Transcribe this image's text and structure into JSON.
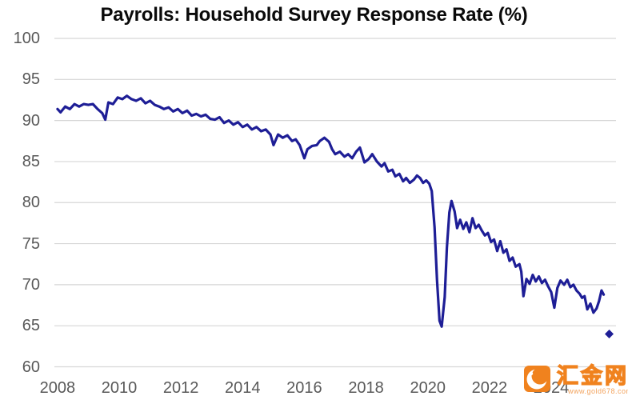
{
  "title": "Payrolls: Household Survey Response Rate (%)",
  "watermark": {
    "brand": "汇金网",
    "url": "www.gold678.com",
    "logo_color": "#f0821e"
  },
  "colors": {
    "line": "#1e1e96",
    "marker": "#1e1e96",
    "grid": "#d6d6d6",
    "axis_text": "#595959",
    "title_text": "#0a0a0a",
    "background": "#ffffff"
  },
  "chart_data": {
    "type": "line",
    "title": "Payrolls: Household Survey Response Rate (%)",
    "xlabel": "",
    "ylabel": "",
    "xlim": [
      2007.9,
      2026.1
    ],
    "ylim": [
      60,
      100
    ],
    "x_ticks": [
      2008,
      2010,
      2012,
      2014,
      2016,
      2018,
      2020,
      2022,
      2024
    ],
    "y_ticks": [
      100,
      95,
      90,
      85,
      80,
      75,
      70,
      65,
      60
    ],
    "grid": "horizontal",
    "legend": "none",
    "series": [
      {
        "name": "Household survey response rate (%)",
        "points": [
          [
            2008.0,
            91.4
          ],
          [
            2008.1,
            91.0
          ],
          [
            2008.25,
            91.7
          ],
          [
            2008.4,
            91.4
          ],
          [
            2008.55,
            92.0
          ],
          [
            2008.7,
            91.7
          ],
          [
            2008.85,
            92.0
          ],
          [
            2009.0,
            91.9
          ],
          [
            2009.15,
            92.0
          ],
          [
            2009.3,
            91.4
          ],
          [
            2009.45,
            90.9
          ],
          [
            2009.55,
            90.1
          ],
          [
            2009.65,
            92.2
          ],
          [
            2009.8,
            92.0
          ],
          [
            2009.95,
            92.8
          ],
          [
            2010.1,
            92.6
          ],
          [
            2010.25,
            93.0
          ],
          [
            2010.4,
            92.6
          ],
          [
            2010.55,
            92.4
          ],
          [
            2010.7,
            92.7
          ],
          [
            2010.85,
            92.1
          ],
          [
            2011.0,
            92.4
          ],
          [
            2011.15,
            91.9
          ],
          [
            2011.3,
            91.7
          ],
          [
            2011.45,
            91.4
          ],
          [
            2011.6,
            91.6
          ],
          [
            2011.75,
            91.1
          ],
          [
            2011.9,
            91.4
          ],
          [
            2012.05,
            90.9
          ],
          [
            2012.2,
            91.2
          ],
          [
            2012.35,
            90.6
          ],
          [
            2012.5,
            90.8
          ],
          [
            2012.65,
            90.5
          ],
          [
            2012.8,
            90.7
          ],
          [
            2012.95,
            90.2
          ],
          [
            2013.1,
            90.1
          ],
          [
            2013.25,
            90.4
          ],
          [
            2013.4,
            89.7
          ],
          [
            2013.55,
            90.0
          ],
          [
            2013.7,
            89.5
          ],
          [
            2013.85,
            89.8
          ],
          [
            2014.0,
            89.2
          ],
          [
            2014.15,
            89.5
          ],
          [
            2014.3,
            88.9
          ],
          [
            2014.45,
            89.2
          ],
          [
            2014.6,
            88.7
          ],
          [
            2014.75,
            88.9
          ],
          [
            2014.9,
            88.3
          ],
          [
            2015.0,
            87.0
          ],
          [
            2015.15,
            88.3
          ],
          [
            2015.3,
            87.9
          ],
          [
            2015.45,
            88.2
          ],
          [
            2015.6,
            87.5
          ],
          [
            2015.72,
            87.7
          ],
          [
            2015.85,
            87.0
          ],
          [
            2016.0,
            85.4
          ],
          [
            2016.1,
            86.5
          ],
          [
            2016.25,
            86.9
          ],
          [
            2016.4,
            87.0
          ],
          [
            2016.5,
            87.5
          ],
          [
            2016.65,
            87.9
          ],
          [
            2016.8,
            87.4
          ],
          [
            2016.9,
            86.5
          ],
          [
            2017.0,
            85.9
          ],
          [
            2017.15,
            86.2
          ],
          [
            2017.3,
            85.6
          ],
          [
            2017.42,
            85.9
          ],
          [
            2017.55,
            85.4
          ],
          [
            2017.68,
            86.2
          ],
          [
            2017.8,
            86.7
          ],
          [
            2017.95,
            84.9
          ],
          [
            2018.08,
            85.3
          ],
          [
            2018.2,
            85.9
          ],
          [
            2018.35,
            85.0
          ],
          [
            2018.5,
            84.4
          ],
          [
            2018.6,
            84.8
          ],
          [
            2018.72,
            83.8
          ],
          [
            2018.85,
            84.0
          ],
          [
            2018.95,
            83.2
          ],
          [
            2019.08,
            83.5
          ],
          [
            2019.2,
            82.6
          ],
          [
            2019.3,
            83.0
          ],
          [
            2019.42,
            82.4
          ],
          [
            2019.55,
            82.8
          ],
          [
            2019.65,
            83.3
          ],
          [
            2019.75,
            83.0
          ],
          [
            2019.85,
            82.4
          ],
          [
            2019.95,
            82.7
          ],
          [
            2020.05,
            82.3
          ],
          [
            2020.13,
            81.4
          ],
          [
            2020.22,
            77.0
          ],
          [
            2020.3,
            70.5
          ],
          [
            2020.38,
            65.6
          ],
          [
            2020.45,
            64.9
          ],
          [
            2020.55,
            68.5
          ],
          [
            2020.62,
            74.5
          ],
          [
            2020.7,
            78.8
          ],
          [
            2020.77,
            80.2
          ],
          [
            2020.87,
            78.9
          ],
          [
            2020.95,
            76.9
          ],
          [
            2021.05,
            77.9
          ],
          [
            2021.15,
            76.8
          ],
          [
            2021.25,
            77.6
          ],
          [
            2021.35,
            76.4
          ],
          [
            2021.45,
            78.1
          ],
          [
            2021.55,
            76.9
          ],
          [
            2021.65,
            77.3
          ],
          [
            2021.75,
            76.6
          ],
          [
            2021.85,
            76.0
          ],
          [
            2021.95,
            76.3
          ],
          [
            2022.05,
            75.2
          ],
          [
            2022.15,
            75.5
          ],
          [
            2022.25,
            74.1
          ],
          [
            2022.35,
            75.3
          ],
          [
            2022.45,
            73.9
          ],
          [
            2022.55,
            74.3
          ],
          [
            2022.65,
            72.9
          ],
          [
            2022.75,
            73.3
          ],
          [
            2022.85,
            72.2
          ],
          [
            2022.97,
            72.5
          ],
          [
            2023.03,
            71.6
          ],
          [
            2023.1,
            68.6
          ],
          [
            2023.2,
            70.7
          ],
          [
            2023.3,
            70.1
          ],
          [
            2023.4,
            71.2
          ],
          [
            2023.5,
            70.4
          ],
          [
            2023.6,
            71.0
          ],
          [
            2023.7,
            70.2
          ],
          [
            2023.8,
            70.6
          ],
          [
            2023.9,
            69.8
          ],
          [
            2024.0,
            69.1
          ],
          [
            2024.1,
            67.2
          ],
          [
            2024.2,
            69.6
          ],
          [
            2024.3,
            70.5
          ],
          [
            2024.42,
            70.0
          ],
          [
            2024.52,
            70.6
          ],
          [
            2024.62,
            69.7
          ],
          [
            2024.72,
            70.0
          ],
          [
            2024.82,
            69.3
          ],
          [
            2024.92,
            68.9
          ],
          [
            2025.0,
            68.4
          ],
          [
            2025.08,
            68.6
          ],
          [
            2025.17,
            67.0
          ],
          [
            2025.27,
            67.7
          ],
          [
            2025.37,
            66.6
          ],
          [
            2025.47,
            67.1
          ],
          [
            2025.55,
            68.0
          ],
          [
            2025.63,
            69.3
          ],
          [
            2025.7,
            68.8
          ]
        ]
      }
    ],
    "latest_point_marker": {
      "x": 2025.88,
      "y": 64.0,
      "shape": "diamond"
    }
  }
}
